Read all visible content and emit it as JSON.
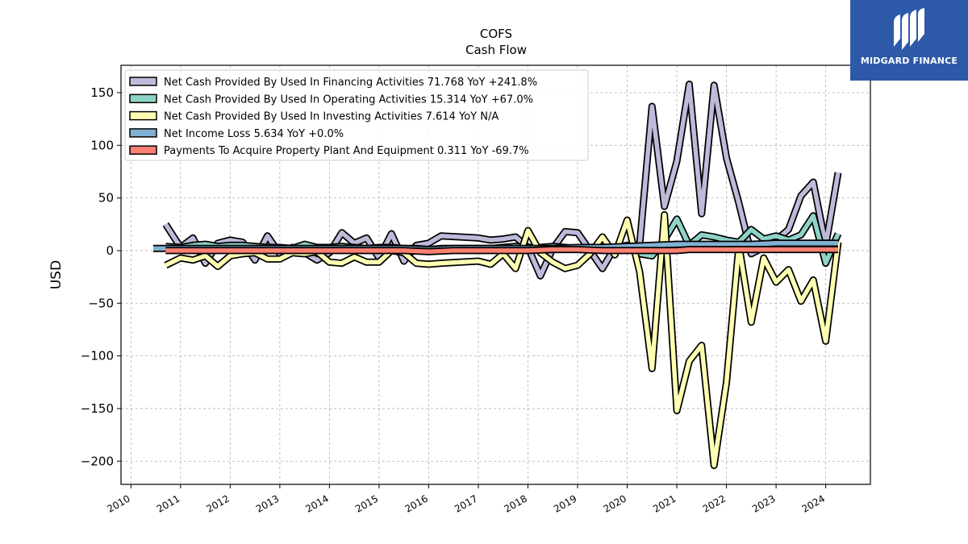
{
  "chart_data": {
    "type": "line",
    "title": "COFS",
    "subtitle": "Cash Flow",
    "ylabel": "USD",
    "xlabel": "",
    "xlim": [
      2009.8,
      2024.9
    ],
    "ylim": [
      -222,
      176
    ],
    "grid": true,
    "legend_position": "top-left",
    "x_ticks": [
      2010,
      2011,
      2012,
      2013,
      2014,
      2015,
      2016,
      2017,
      2018,
      2019,
      2020,
      2021,
      2022,
      2023,
      2024
    ],
    "x_tick_labels": [
      "2010",
      "2011",
      "2012",
      "2013",
      "2014",
      "2015",
      "2016",
      "2017",
      "2018",
      "2019",
      "2020",
      "2021",
      "2022",
      "2023",
      "2024"
    ],
    "y_ticks": [
      150,
      100,
      50,
      0,
      -50,
      -100,
      -150,
      -200
    ],
    "y_tick_labels": [
      "150",
      "100",
      "50",
      "0",
      "−50",
      "−100",
      "−150",
      "−200"
    ],
    "series": [
      {
        "name": "Net Cash Provided By Used In Financing Activities",
        "legend_label": "Net Cash Provided By Used In Financing Activities  71.768 YoY +241.8%",
        "color": "#bebada",
        "points": [
          [
            2010.7,
            25
          ],
          [
            2011.0,
            3
          ],
          [
            2011.25,
            12
          ],
          [
            2011.5,
            -12
          ],
          [
            2011.75,
            7
          ],
          [
            2012.0,
            10
          ],
          [
            2012.25,
            8
          ],
          [
            2012.5,
            -9
          ],
          [
            2012.75,
            14
          ],
          [
            2013.0,
            -3
          ],
          [
            2013.25,
            3
          ],
          [
            2013.5,
            -2
          ],
          [
            2013.75,
            -9
          ],
          [
            2014.0,
            -2
          ],
          [
            2014.25,
            17
          ],
          [
            2014.5,
            7
          ],
          [
            2014.75,
            12
          ],
          [
            2015.0,
            -7
          ],
          [
            2015.25,
            16
          ],
          [
            2015.5,
            -10
          ],
          [
            2015.75,
            5
          ],
          [
            2016.0,
            7
          ],
          [
            2016.25,
            14
          ],
          [
            2017.0,
            12
          ],
          [
            2017.25,
            10
          ],
          [
            2017.5,
            11
          ],
          [
            2017.75,
            13
          ],
          [
            2018.0,
            3
          ],
          [
            2018.25,
            -24
          ],
          [
            2018.5,
            2
          ],
          [
            2018.75,
            18
          ],
          [
            2019.0,
            17
          ],
          [
            2019.25,
            0
          ],
          [
            2019.5,
            -17
          ],
          [
            2019.75,
            3
          ],
          [
            2020.0,
            5
          ],
          [
            2020.25,
            5
          ],
          [
            2020.5,
            137
          ],
          [
            2020.75,
            42
          ],
          [
            2021.0,
            85
          ],
          [
            2021.25,
            158
          ],
          [
            2021.5,
            35
          ],
          [
            2021.75,
            157
          ],
          [
            2022.0,
            88
          ],
          [
            2022.25,
            45
          ],
          [
            2022.5,
            -3
          ],
          [
            2022.75,
            3
          ],
          [
            2023.0,
            10
          ],
          [
            2023.25,
            20
          ],
          [
            2023.5,
            52
          ],
          [
            2023.75,
            65
          ],
          [
            2024.0,
            5
          ],
          [
            2024.25,
            74
          ]
        ]
      },
      {
        "name": "Net Cash Provided By Used In Operating Activities",
        "legend_label": "Net Cash Provided By Used In Operating Activities  15.314 YoY +67.0%",
        "color": "#8dd3c7",
        "points": [
          [
            2010.7,
            4
          ],
          [
            2011.0,
            3
          ],
          [
            2011.25,
            5
          ],
          [
            2011.5,
            6
          ],
          [
            2011.75,
            4
          ],
          [
            2012.0,
            5
          ],
          [
            2012.25,
            5
          ],
          [
            2012.5,
            4
          ],
          [
            2012.75,
            3
          ],
          [
            2013.0,
            3
          ],
          [
            2013.25,
            2
          ],
          [
            2013.5,
            6
          ],
          [
            2013.75,
            3
          ],
          [
            2014.0,
            3
          ],
          [
            2014.25,
            4
          ],
          [
            2014.5,
            3
          ],
          [
            2014.75,
            2
          ],
          [
            2015.0,
            3
          ],
          [
            2015.25,
            3
          ],
          [
            2015.5,
            2
          ],
          [
            2015.75,
            2
          ],
          [
            2016.0,
            1
          ],
          [
            2016.25,
            2
          ],
          [
            2017.0,
            2
          ],
          [
            2017.25,
            2
          ],
          [
            2017.5,
            3
          ],
          [
            2017.75,
            4
          ],
          [
            2018.0,
            3
          ],
          [
            2018.25,
            3
          ],
          [
            2018.5,
            4
          ],
          [
            2018.75,
            3
          ],
          [
            2019.0,
            2
          ],
          [
            2019.25,
            3
          ],
          [
            2019.5,
            4
          ],
          [
            2019.75,
            3
          ],
          [
            2020.0,
            2
          ],
          [
            2020.25,
            -3
          ],
          [
            2020.5,
            -5
          ],
          [
            2020.75,
            10
          ],
          [
            2021.0,
            30
          ],
          [
            2021.25,
            5
          ],
          [
            2021.5,
            15
          ],
          [
            2021.75,
            13
          ],
          [
            2022.0,
            10
          ],
          [
            2022.25,
            8
          ],
          [
            2022.5,
            20
          ],
          [
            2022.75,
            11
          ],
          [
            2023.0,
            14
          ],
          [
            2023.25,
            10
          ],
          [
            2023.5,
            15
          ],
          [
            2023.75,
            33
          ],
          [
            2024.0,
            -12
          ],
          [
            2024.25,
            16
          ]
        ]
      },
      {
        "name": "Net Cash Provided By Used In Investing Activities",
        "legend_label": "Net Cash Provided By Used In Investing Activities  7.614 YoY N/A",
        "color": "#ffffb3",
        "points": [
          [
            2010.7,
            -14
          ],
          [
            2011.0,
            -7
          ],
          [
            2011.25,
            -9
          ],
          [
            2011.5,
            -5
          ],
          [
            2011.75,
            -15
          ],
          [
            2012.0,
            -5
          ],
          [
            2012.25,
            -3
          ],
          [
            2012.5,
            -2
          ],
          [
            2012.75,
            -8
          ],
          [
            2013.0,
            -8
          ],
          [
            2013.25,
            -2
          ],
          [
            2013.5,
            -3
          ],
          [
            2013.75,
            -1
          ],
          [
            2014.0,
            -11
          ],
          [
            2014.25,
            -12
          ],
          [
            2014.5,
            -6
          ],
          [
            2014.75,
            -11
          ],
          [
            2015.0,
            -11
          ],
          [
            2015.25,
            0
          ],
          [
            2015.5,
            -2
          ],
          [
            2015.75,
            -12
          ],
          [
            2016.0,
            -13
          ],
          [
            2016.25,
            -12
          ],
          [
            2017.0,
            -10
          ],
          [
            2017.25,
            -13
          ],
          [
            2017.5,
            -3
          ],
          [
            2017.75,
            -17
          ],
          [
            2018.0,
            19
          ],
          [
            2018.25,
            -2
          ],
          [
            2018.5,
            -11
          ],
          [
            2018.75,
            -17
          ],
          [
            2019.0,
            -14
          ],
          [
            2019.25,
            -3
          ],
          [
            2019.5,
            13
          ],
          [
            2019.75,
            -4
          ],
          [
            2020.0,
            29
          ],
          [
            2020.25,
            -20
          ],
          [
            2020.5,
            -112
          ],
          [
            2020.75,
            34
          ],
          [
            2021.0,
            -152
          ],
          [
            2021.25,
            -105
          ],
          [
            2021.5,
            -90
          ],
          [
            2021.75,
            -204
          ],
          [
            2022.0,
            -125
          ],
          [
            2022.25,
            5
          ],
          [
            2022.5,
            -68
          ],
          [
            2022.75,
            -7
          ],
          [
            2023.0,
            -30
          ],
          [
            2023.25,
            -18
          ],
          [
            2023.5,
            -48
          ],
          [
            2023.75,
            -28
          ],
          [
            2024.0,
            -86
          ],
          [
            2024.25,
            8
          ]
        ]
      },
      {
        "name": "Net Income Loss",
        "legend_label": "Net Income Loss  5.634 YoY +0.0%",
        "color": "#80b1d3",
        "points": [
          [
            2010.45,
            2
          ],
          [
            2010.7,
            2
          ],
          [
            2011.0,
            2
          ],
          [
            2011.5,
            2
          ],
          [
            2012.0,
            2
          ],
          [
            2012.5,
            2
          ],
          [
            2013.0,
            2
          ],
          [
            2013.5,
            2
          ],
          [
            2014.0,
            2
          ],
          [
            2014.5,
            2
          ],
          [
            2015.0,
            2
          ],
          [
            2015.5,
            2
          ],
          [
            2016.0,
            1
          ],
          [
            2016.5,
            2
          ],
          [
            2017.0,
            2
          ],
          [
            2017.5,
            2
          ],
          [
            2018.0,
            2
          ],
          [
            2018.5,
            2
          ],
          [
            2019.0,
            3
          ],
          [
            2019.5,
            3
          ],
          [
            2020.0,
            4
          ],
          [
            2020.5,
            5
          ],
          [
            2021.0,
            6
          ],
          [
            2021.5,
            6
          ],
          [
            2022.0,
            6
          ],
          [
            2022.5,
            6
          ],
          [
            2023.0,
            7
          ],
          [
            2023.5,
            7
          ],
          [
            2024.0,
            7
          ],
          [
            2024.25,
            7
          ]
        ]
      },
      {
        "name": "Payments To Acquire Property Plant And Equipment",
        "legend_label": "Payments To Acquire Property Plant And Equipment  0.311 YoY -69.7%",
        "color": "#fb8072",
        "points": [
          [
            2010.7,
            0
          ],
          [
            2011.0,
            0
          ],
          [
            2011.5,
            0
          ],
          [
            2012.0,
            0
          ],
          [
            2012.5,
            0
          ],
          [
            2013.0,
            0
          ],
          [
            2013.5,
            0
          ],
          [
            2014.0,
            0
          ],
          [
            2014.5,
            0
          ],
          [
            2015.0,
            0
          ],
          [
            2015.5,
            0
          ],
          [
            2016.0,
            -1
          ],
          [
            2016.5,
            0
          ],
          [
            2017.0,
            0
          ],
          [
            2017.5,
            0
          ],
          [
            2018.0,
            0
          ],
          [
            2018.5,
            1
          ],
          [
            2019.0,
            1
          ],
          [
            2019.5,
            0
          ],
          [
            2020.0,
            0
          ],
          [
            2020.5,
            0
          ],
          [
            2021.0,
            0
          ],
          [
            2021.25,
            1
          ],
          [
            2021.5,
            1
          ],
          [
            2022.0,
            1
          ],
          [
            2022.5,
            1
          ],
          [
            2023.0,
            1
          ],
          [
            2023.5,
            1
          ],
          [
            2024.0,
            1
          ],
          [
            2024.25,
            1
          ]
        ]
      }
    ]
  },
  "logo": {
    "text": "MIDGARD FINANCE",
    "icon": "midgard-m-logo-icon",
    "background": "#2d5aa8"
  }
}
